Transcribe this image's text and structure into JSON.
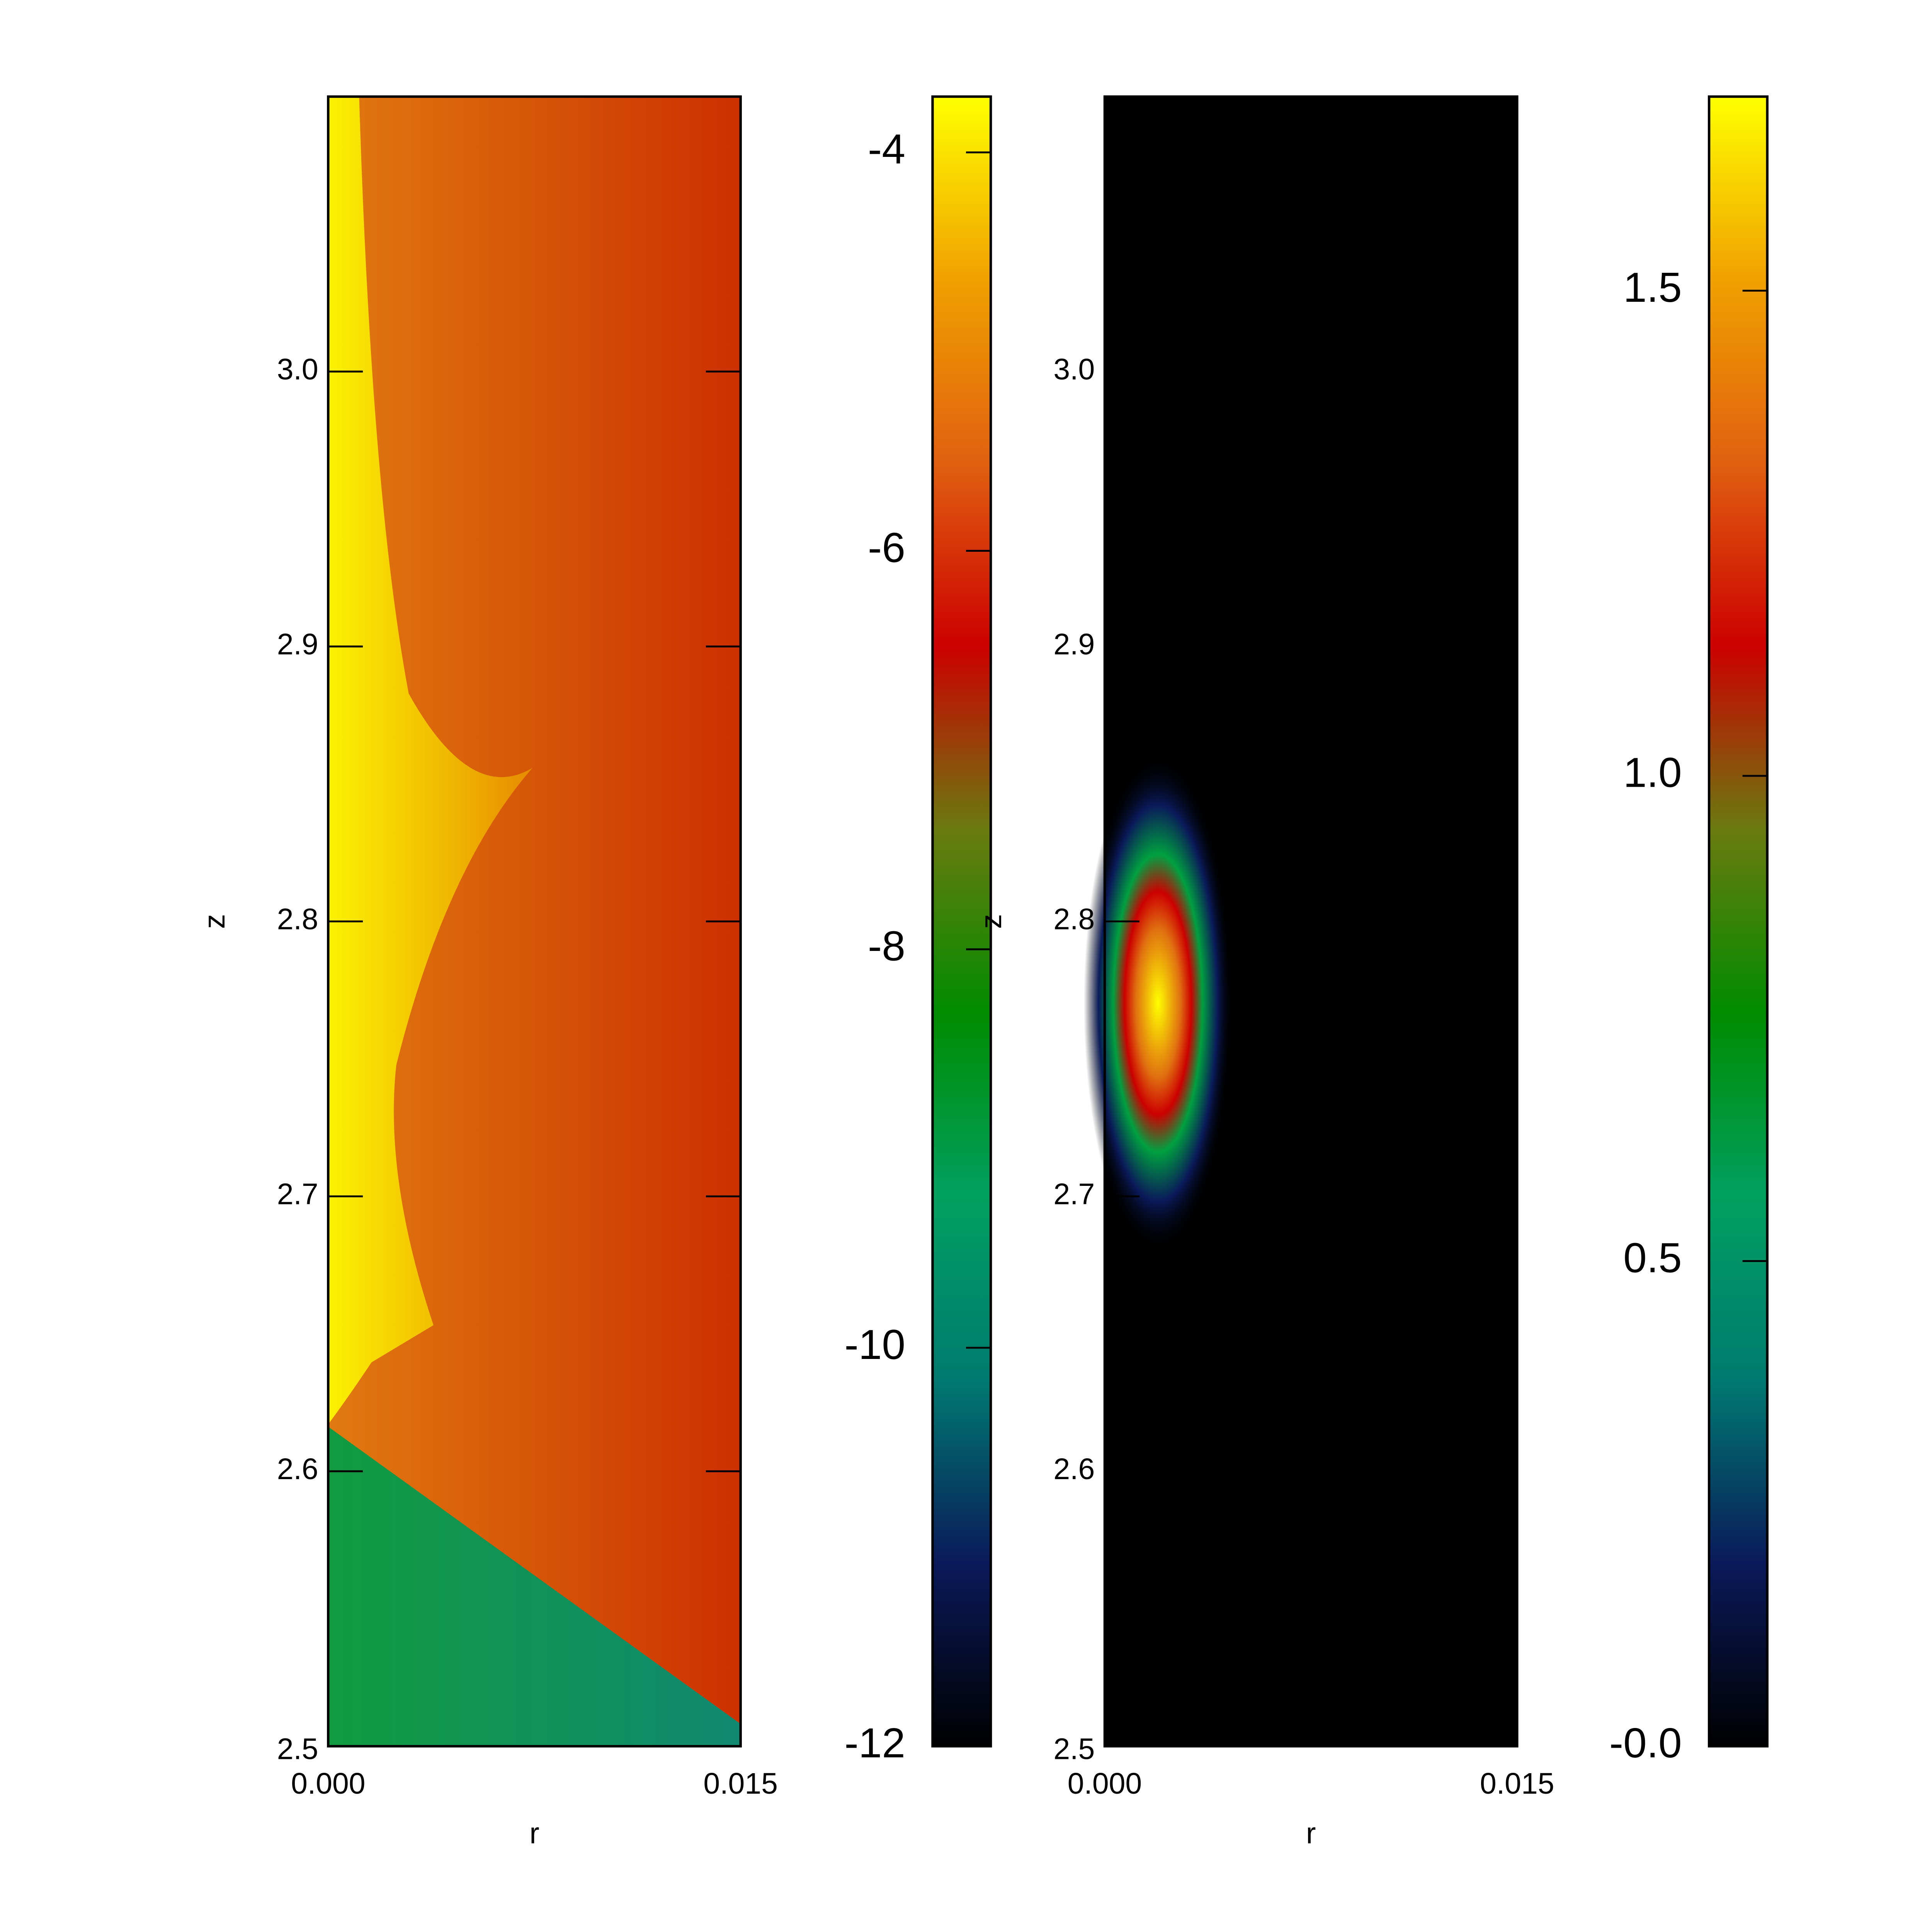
{
  "chart_data": [
    {
      "type": "heatmap",
      "xlabel": "r",
      "ylabel": "z",
      "xlim": [
        0,
        0.015
      ],
      "ylim": [
        2.5,
        3.1
      ],
      "xticks": [
        {
          "value": 0,
          "label": "0.000"
        },
        {
          "value": 0.015,
          "label": "0.015"
        }
      ],
      "yticks": [
        2.5,
        2.6,
        2.7,
        2.8,
        2.9,
        {
          "value": 3.0,
          "label": "3.0"
        }
      ],
      "colorbar": {
        "lim": [
          -12,
          -3.72
        ],
        "ticks": [
          -12,
          -10,
          -8,
          -6,
          -4
        ],
        "colormap": [
          "#000000",
          "#0a1a5a",
          "#007a70",
          "#00a060",
          "#008c00",
          "#6a7a10",
          "#cc0000",
          "#e06010",
          "#f0a000",
          "#ffff00"
        ]
      }
    },
    {
      "type": "heatmap",
      "xlabel": "r",
      "ylabel": "z",
      "xlim": [
        0,
        0.015
      ],
      "ylim": [
        2.5,
        3.1
      ],
      "xticks": [
        {
          "value": 0,
          "label": "0.000"
        },
        {
          "value": 0.015,
          "label": "0.015"
        }
      ],
      "yticks": [
        2.5,
        2.6,
        2.7,
        2.8,
        2.9,
        {
          "value": 3.0,
          "label": "3.0"
        }
      ],
      "colorbar": {
        "lim": [
          0,
          1.7
        ],
        "ticks": [
          {
            "value": 0,
            "label": "-0.0"
          },
          {
            "value": 0.5,
            "label": "0.5"
          },
          {
            "value": 1.0,
            "label": "1.0"
          },
          {
            "value": 1.5,
            "label": "1.5"
          }
        ],
        "colormap": [
          "#000000",
          "#0a1a5a",
          "#007a70",
          "#00a060",
          "#008c00",
          "#6a7a10",
          "#cc0000",
          "#e06010",
          "#f0a000",
          "#ffff00"
        ]
      }
    }
  ]
}
